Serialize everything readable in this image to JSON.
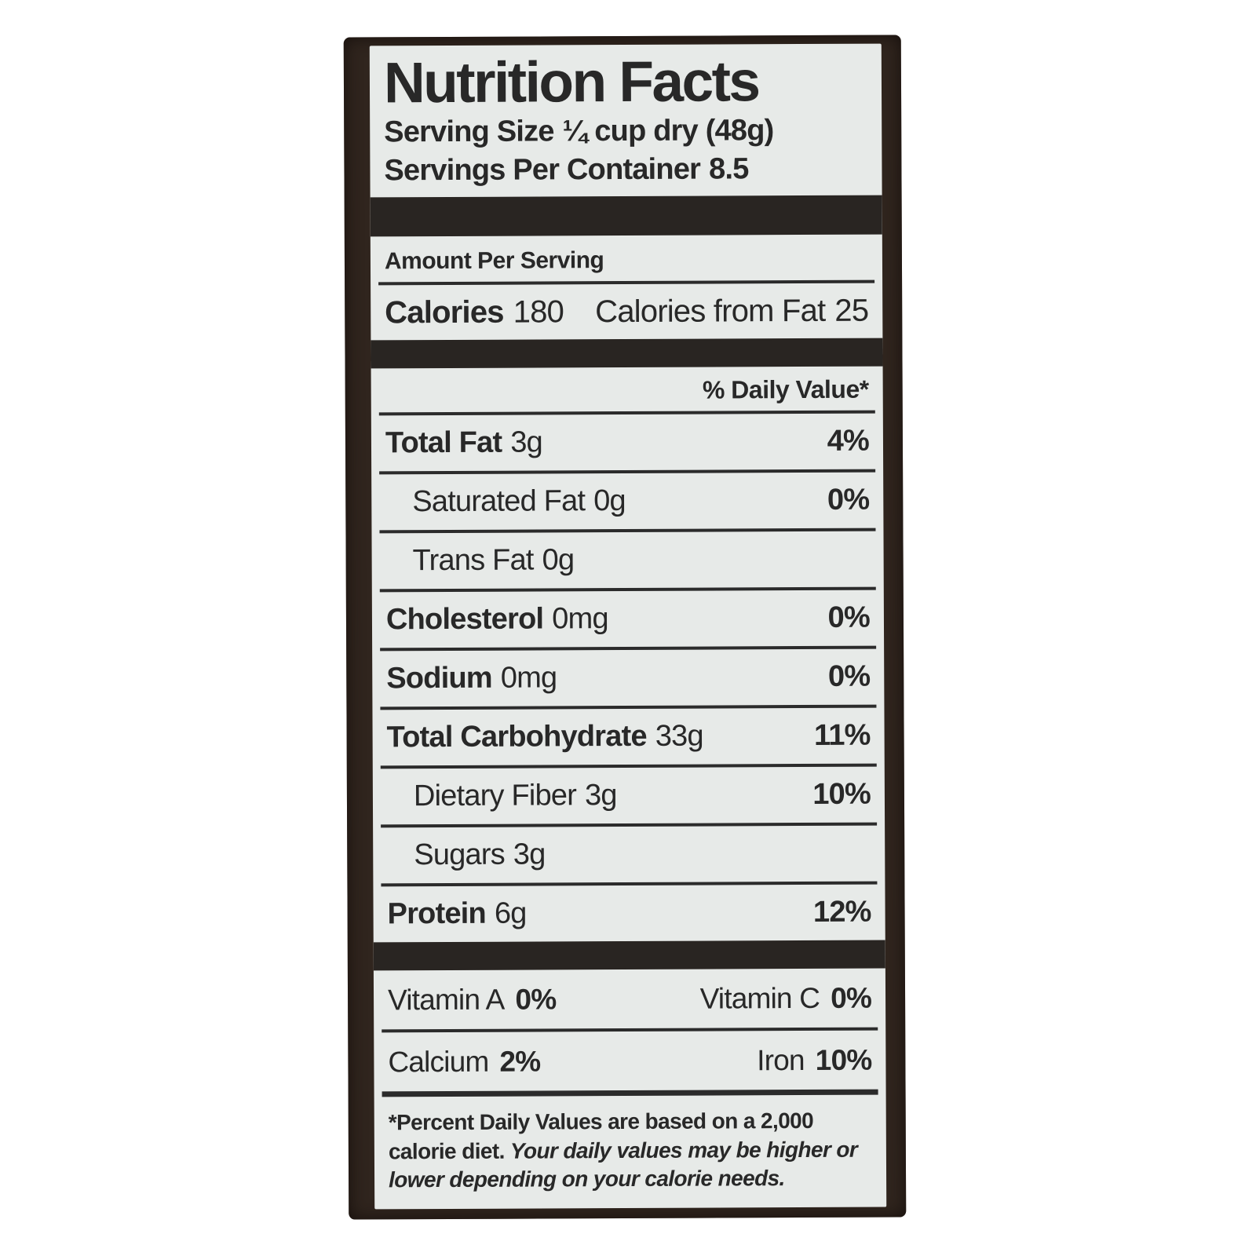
{
  "colors": {
    "page_background": "#ffffff",
    "package_background": "#30251e",
    "label_background": "#e7eae8",
    "text": "#282828",
    "separator_bar": "#292522"
  },
  "label": {
    "title": "Nutrition Facts",
    "serving_size": {
      "label": "Serving Size",
      "value": "¼ cup dry (48g)"
    },
    "servings_per_container": {
      "label": "Servings Per Container",
      "value": "8.5"
    },
    "amount_per_serving": "Amount Per Serving",
    "calories": {
      "label": "Calories",
      "value": "180",
      "from_fat_label": "Calories from Fat",
      "from_fat_value": "25"
    },
    "daily_value_header": "% Daily Value*",
    "nutrients": [
      {
        "label": "Total Fat",
        "amount": "3g",
        "dv": "4%"
      },
      {
        "label": "Saturated Fat",
        "amount": "0g",
        "dv": "0%"
      },
      {
        "label": "Trans Fat",
        "amount": "0g",
        "dv": ""
      },
      {
        "label": "Cholesterol",
        "amount": "0mg",
        "dv": "0%"
      },
      {
        "label": "Sodium",
        "amount": "0mg",
        "dv": "0%"
      },
      {
        "label": "Total Carbohydrate",
        "amount": "33g",
        "dv": "11%"
      },
      {
        "label": "Dietary Fiber",
        "amount": "3g",
        "dv": "10%"
      },
      {
        "label": "Sugars",
        "amount": "3g",
        "dv": ""
      },
      {
        "label": "Protein",
        "amount": "6g",
        "dv": "12%"
      }
    ],
    "vitamins": [
      {
        "left": {
          "name": "Vitamin A",
          "value": "0%"
        },
        "right": {
          "name": "Vitamin C",
          "value": "0%"
        }
      },
      {
        "left": {
          "name": "Calcium",
          "value": "2%"
        },
        "right": {
          "name": "Iron",
          "value": "10%"
        }
      }
    ],
    "footnote": {
      "line1": "*Percent Daily Values are based on a 2,000 calorie diet. ",
      "line2": "Your daily values may be higher or lower depending on your calorie needs."
    }
  }
}
